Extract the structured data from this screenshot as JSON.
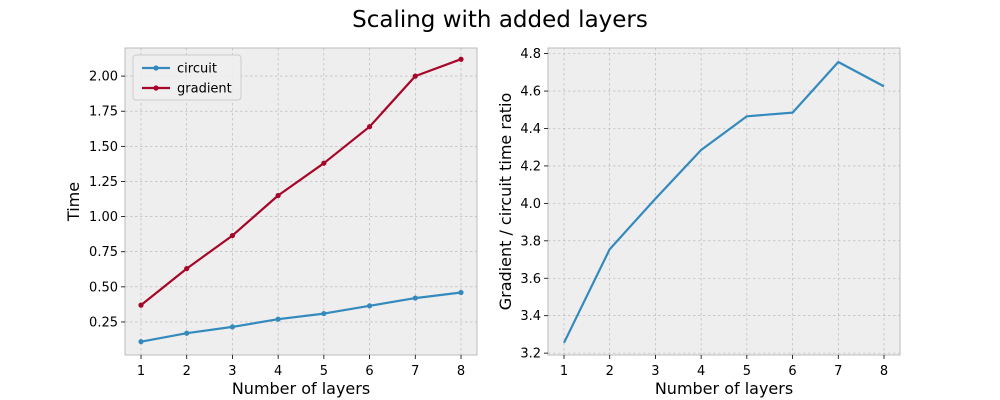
{
  "figure": {
    "title": "Scaling with added layers"
  },
  "colors": {
    "circuit": "#348abd",
    "gradient": "#a60628",
    "plot_background": "#eeeeee",
    "grid": "#b2b2b2"
  },
  "chart_data": [
    {
      "type": "line",
      "title": "",
      "xlabel": "Number of layers",
      "ylabel": "Time",
      "x": [
        1,
        2,
        3,
        4,
        5,
        6,
        7,
        8
      ],
      "xlim": [
        0.65,
        8.35
      ],
      "ylim": [
        0.015,
        2.2
      ],
      "xticks": [
        1,
        2,
        3,
        4,
        5,
        6,
        7,
        8
      ],
      "yticks": [
        0.25,
        0.5,
        0.75,
        1.0,
        1.25,
        1.5,
        1.75,
        2.0
      ],
      "ytick_labels": [
        "0.25",
        "0.50",
        "0.75",
        "1.00",
        "1.25",
        "1.50",
        "1.75",
        "2.00"
      ],
      "grid": true,
      "legend": "top-left",
      "markers": true,
      "series": [
        {
          "name": "circuit",
          "color": "#348abd",
          "values": [
            0.11,
            0.17,
            0.215,
            0.27,
            0.31,
            0.365,
            0.42,
            0.46
          ]
        },
        {
          "name": "gradient",
          "color": "#a60628",
          "values": [
            0.37,
            0.63,
            0.865,
            1.15,
            1.38,
            1.64,
            2.0,
            2.12
          ]
        }
      ]
    },
    {
      "type": "line",
      "title": "",
      "xlabel": "Number of layers",
      "ylabel": "Gradient / circuit time ratio",
      "x": [
        1,
        2,
        3,
        4,
        5,
        6,
        7,
        8
      ],
      "xlim": [
        0.65,
        8.35
      ],
      "ylim": [
        3.19,
        4.83
      ],
      "xticks": [
        1,
        2,
        3,
        4,
        5,
        6,
        7,
        8
      ],
      "yticks": [
        3.2,
        3.4,
        3.6,
        3.8,
        4.0,
        4.2,
        4.4,
        4.6,
        4.8
      ],
      "ytick_labels": [
        "3.2",
        "3.4",
        "3.6",
        "3.8",
        "4.0",
        "4.2",
        "4.4",
        "4.6",
        "4.8"
      ],
      "grid": true,
      "legend": "none",
      "markers": false,
      "series": [
        {
          "color": "#348abd",
          "values": [
            3.255,
            3.755,
            4.025,
            4.285,
            4.465,
            4.485,
            4.755,
            4.625
          ]
        }
      ]
    }
  ]
}
